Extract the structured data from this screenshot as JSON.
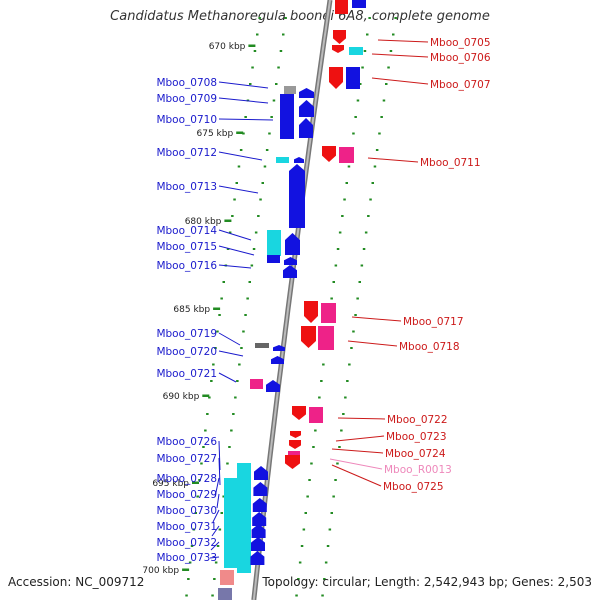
{
  "title": "Candidatus Methanoregula boonei 6A8, complete genome",
  "accession": "Accession: NC_009712",
  "summary": "Topology: circular; Length: 2,542,943 bp; Genes: 2,503",
  "colors": {
    "backbone": "#888888",
    "tick": "#228b22",
    "left_label": "#1a1acc",
    "right_label": "#cc1a1a",
    "rna_label": "#ee88bb",
    "blue": "#1212e0",
    "cyan": "#19d6e0",
    "red": "#ee1111",
    "pink": "#ee2288",
    "gray": "#999999"
  },
  "scale_labels": [
    {
      "kbp": 670,
      "text": "670 kbp"
    },
    {
      "kbp": 675,
      "text": "675 kbp"
    },
    {
      "kbp": 680,
      "text": "680 kbp"
    },
    {
      "kbp": 685,
      "text": "685 kbp"
    },
    {
      "kbp": 690,
      "text": "690 kbp"
    },
    {
      "kbp": 695,
      "text": "695 kbp"
    },
    {
      "kbp": 700,
      "text": "700 kbp"
    }
  ],
  "left_genes": [
    "Mboo_0708",
    "Mboo_0709",
    "Mboo_0710",
    "Mboo_0712",
    "Mboo_0713",
    "Mboo_0714",
    "Mboo_0715",
    "Mboo_0716",
    "Mboo_0719",
    "Mboo_0720",
    "Mboo_0721",
    "Mboo_0726",
    "Mboo_0727",
    "Mboo_0728",
    "Mboo_0729",
    "Mboo_0730",
    "Mboo_0731",
    "Mboo_0732",
    "Mboo_0733"
  ],
  "right_genes": [
    "Mboo_0705",
    "Mboo_0706",
    "Mboo_0707",
    "Mboo_0711",
    "Mboo_0717",
    "Mboo_0718",
    "Mboo_0722",
    "Mboo_0723",
    "Mboo_0724",
    "Mboo_R0013",
    "Mboo_0725"
  ]
}
